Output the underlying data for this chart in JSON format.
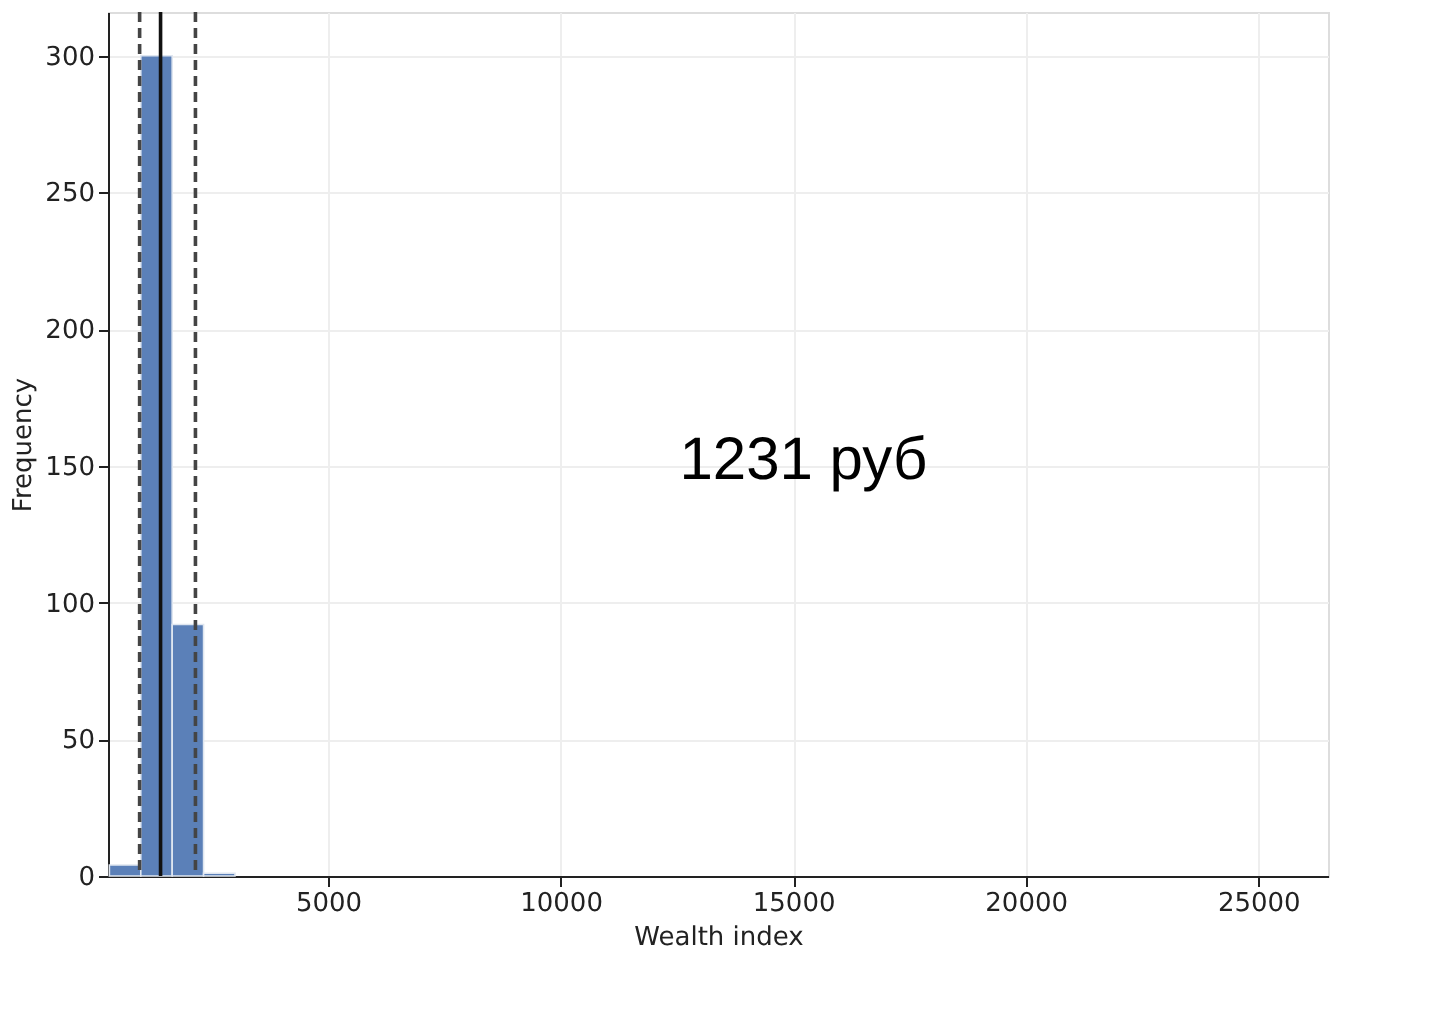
{
  "chart_data": {
    "type": "histogram",
    "xlabel": "Wealth index",
    "ylabel": "Frequency",
    "bins": [
      300,
      975,
      1650,
      2325,
      3000
    ],
    "values": [
      4,
      300,
      92,
      1
    ],
    "color": "#5b80b8",
    "xlim": [
      270,
      26500
    ],
    "xticks": [
      5000,
      10000,
      15000,
      20000,
      25000
    ],
    "ylim": [
      0,
      316
    ],
    "yticks": [
      0,
      50,
      100,
      150,
      200,
      250,
      300
    ],
    "grid": true,
    "ref_lines": [
      {
        "axis": "x",
        "value": 950,
        "line_style": "dashed",
        "color": "#444444"
      },
      {
        "axis": "x",
        "value": 1400,
        "line_style": "solid",
        "color": "#111111"
      },
      {
        "axis": "x",
        "value": 2150,
        "line_style": "dashed",
        "color": "#444444"
      }
    ],
    "annotations": [
      "1231 руб"
    ]
  }
}
